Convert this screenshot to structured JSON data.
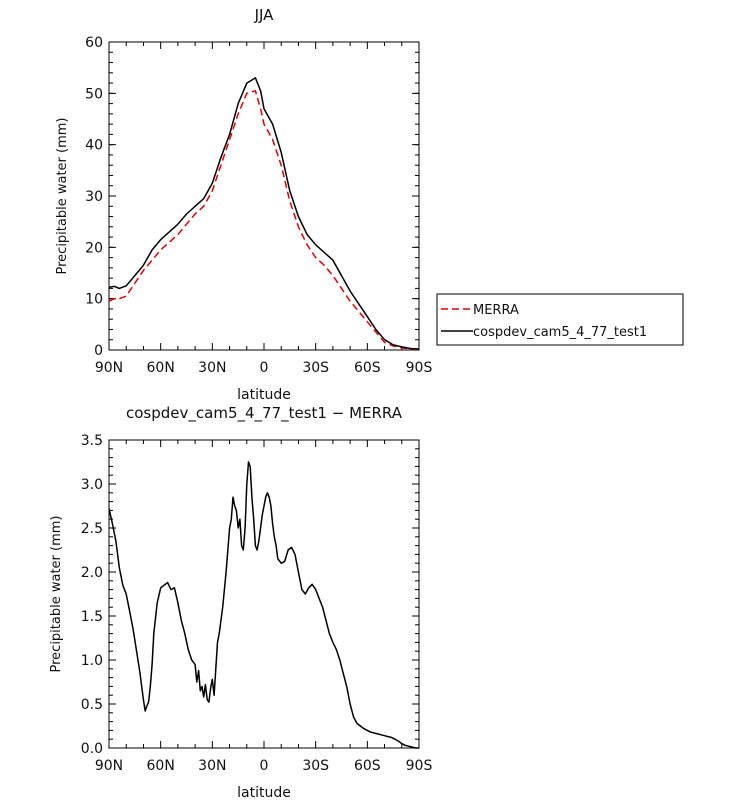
{
  "chart_data": [
    {
      "type": "line",
      "title": "JJA",
      "xlabel": "latitude",
      "ylabel": "Precipitable water (mm)",
      "xlim": [
        90,
        -90
      ],
      "ylim": [
        0,
        60
      ],
      "x_ticks": [
        90,
        60,
        30,
        0,
        -30,
        -60,
        -90
      ],
      "x_tick_labels": [
        "90N",
        "60N",
        "30N",
        "0",
        "30S",
        "60S",
        "90S"
      ],
      "y_ticks": [
        0,
        10,
        20,
        30,
        40,
        50,
        60
      ],
      "y_tick_labels": [
        "0",
        "10",
        "20",
        "30",
        "40",
        "50",
        "60"
      ],
      "legend_position": "outside-right",
      "series": [
        {
          "name": "MERRA",
          "color": "#e00000",
          "dash": "dashed",
          "x": [
            90,
            87,
            84,
            80,
            75,
            70,
            65,
            60,
            55,
            50,
            45,
            40,
            35,
            30,
            25,
            20,
            15,
            10,
            5,
            2,
            0,
            -5,
            -10,
            -15,
            -20,
            -25,
            -30,
            -35,
            -40,
            -45,
            -50,
            -55,
            -60,
            -65,
            -70,
            -75,
            -80,
            -85,
            -90
          ],
          "values": [
            9.5,
            10.0,
            10.0,
            10.5,
            13.0,
            15.5,
            17.5,
            19.5,
            21.0,
            22.5,
            24.5,
            26.5,
            28.0,
            31.0,
            36.0,
            41.0,
            46.0,
            50.0,
            50.5,
            47.0,
            44.0,
            41.0,
            36.0,
            29.0,
            24.0,
            20.5,
            18.0,
            16.5,
            14.5,
            12.0,
            9.5,
            7.5,
            5.5,
            3.5,
            1.5,
            0.8,
            0.4,
            0.2,
            0.1
          ]
        },
        {
          "name": "cospdev_cam5_4_77_test1",
          "color": "#000000",
          "dash": "solid",
          "x": [
            90,
            87,
            84,
            80,
            75,
            70,
            65,
            60,
            55,
            50,
            45,
            40,
            35,
            30,
            25,
            20,
            15,
            10,
            5,
            2,
            0,
            -5,
            -10,
            -15,
            -20,
            -25,
            -30,
            -35,
            -40,
            -45,
            -50,
            -55,
            -60,
            -65,
            -70,
            -75,
            -80,
            -85,
            -90
          ],
          "values": [
            12.2,
            12.4,
            12.0,
            12.5,
            14.5,
            16.5,
            19.5,
            21.5,
            23.0,
            24.5,
            26.5,
            28.0,
            29.5,
            32.5,
            37.5,
            42.0,
            48.0,
            52.0,
            53.0,
            50.5,
            47.0,
            44.0,
            38.5,
            31.0,
            26.0,
            22.5,
            20.5,
            19.0,
            17.5,
            14.5,
            11.5,
            9.0,
            6.5,
            4.0,
            2.0,
            1.0,
            0.6,
            0.3,
            0.2
          ]
        }
      ]
    },
    {
      "type": "line",
      "title": "cospdev_cam5_4_77_test1 − MERRA",
      "xlabel": "latitude",
      "ylabel": "Precipitable water (mm)",
      "xlim": [
        90,
        -90
      ],
      "ylim": [
        0,
        3.5
      ],
      "x_ticks": [
        90,
        60,
        30,
        0,
        -30,
        -60,
        -90
      ],
      "x_tick_labels": [
        "90N",
        "60N",
        "30N",
        "0",
        "30S",
        "60S",
        "90S"
      ],
      "y_ticks": [
        0,
        0.5,
        1,
        1.5,
        2,
        2.5,
        3,
        3.5
      ],
      "y_tick_labels": [
        "0.0",
        "0.5",
        "1.0",
        "1.5",
        "2.0",
        "2.5",
        "3.0",
        "3.5"
      ],
      "series": [
        {
          "color": "#000000",
          "dash": "solid",
          "x": [
            90,
            88,
            86,
            84,
            82,
            80,
            78,
            76,
            74,
            72,
            70,
            69,
            68,
            67,
            66,
            65,
            64,
            62,
            60,
            58,
            56,
            54,
            52,
            50,
            48,
            46,
            44,
            42,
            40,
            39,
            38,
            37,
            36,
            35,
            34,
            33,
            32,
            31,
            30,
            29,
            28,
            27,
            26,
            24,
            22,
            20,
            19,
            18,
            17,
            16,
            15,
            14,
            13,
            12,
            11,
            10,
            9,
            8,
            7,
            6,
            5,
            4,
            3,
            2,
            1,
            0,
            -1,
            -2,
            -3,
            -4,
            -5,
            -6,
            -7,
            -8,
            -10,
            -12,
            -14,
            -16,
            -18,
            -20,
            -22,
            -24,
            -26,
            -28,
            -30,
            -32,
            -34,
            -36,
            -38,
            -40,
            -42,
            -44,
            -46,
            -48,
            -50,
            -52,
            -54,
            -56,
            -58,
            -60,
            -62,
            -64,
            -66,
            -68,
            -70,
            -72,
            -74,
            -76,
            -78,
            -80,
            -82,
            -84,
            -86,
            -88,
            -90
          ],
          "values": [
            2.72,
            2.55,
            2.35,
            2.05,
            1.85,
            1.75,
            1.55,
            1.35,
            1.1,
            0.85,
            0.55,
            0.42,
            0.48,
            0.52,
            0.7,
            0.95,
            1.3,
            1.65,
            1.82,
            1.85,
            1.88,
            1.8,
            1.82,
            1.65,
            1.45,
            1.3,
            1.12,
            1.0,
            0.95,
            0.75,
            0.88,
            0.65,
            0.7,
            0.58,
            0.72,
            0.55,
            0.52,
            0.68,
            0.78,
            0.6,
            0.9,
            1.2,
            1.3,
            1.6,
            2.0,
            2.5,
            2.6,
            2.85,
            2.75,
            2.7,
            2.5,
            2.6,
            2.3,
            2.25,
            2.5,
            3.0,
            3.25,
            3.2,
            2.85,
            2.6,
            2.3,
            2.25,
            2.35,
            2.5,
            2.65,
            2.75,
            2.85,
            2.9,
            2.85,
            2.75,
            2.55,
            2.4,
            2.3,
            2.15,
            2.1,
            2.12,
            2.25,
            2.28,
            2.2,
            2.0,
            1.8,
            1.75,
            1.82,
            1.86,
            1.8,
            1.7,
            1.6,
            1.45,
            1.3,
            1.2,
            1.12,
            1.0,
            0.85,
            0.7,
            0.5,
            0.35,
            0.28,
            0.25,
            0.22,
            0.2,
            0.18,
            0.17,
            0.16,
            0.15,
            0.14,
            0.13,
            0.12,
            0.1,
            0.08,
            0.05,
            0.03,
            0.02,
            0.01,
            0.0,
            0.0
          ]
        }
      ]
    }
  ]
}
